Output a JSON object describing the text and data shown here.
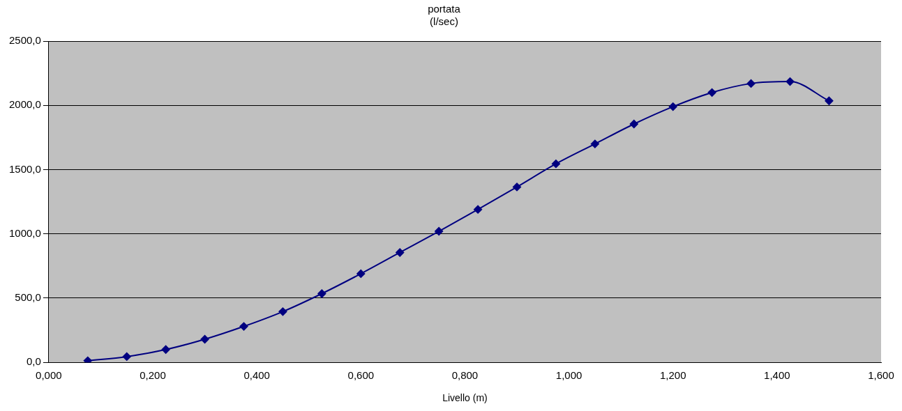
{
  "chart_data": {
    "type": "line",
    "title": "portata\n(l/sec)",
    "xlabel": "Livello (m)",
    "x": [
      0.075,
      0.15,
      0.225,
      0.3,
      0.375,
      0.45,
      0.525,
      0.6,
      0.675,
      0.75,
      0.825,
      0.9,
      0.975,
      1.05,
      1.125,
      1.2,
      1.275,
      1.35,
      1.425,
      1.5
    ],
    "series": [
      {
        "color": "#000080",
        "values": [
          13,
          45,
          100,
          180,
          280,
          395,
          535,
          690,
          855,
          1020,
          1190,
          1365,
          1545,
          1700,
          1855,
          1990,
          2100,
          2170,
          2185,
          2035
        ]
      }
    ],
    "xlim": [
      0,
      1.6
    ],
    "xticks": [
      {
        "value": 0,
        "label": "0,000"
      },
      {
        "value": 0.2,
        "label": "0,200"
      },
      {
        "value": 0.4,
        "label": "0,400"
      },
      {
        "value": 0.6,
        "label": "0,600"
      },
      {
        "value": 0.8,
        "label": "0,800"
      },
      {
        "value": 1,
        "label": "1,000"
      },
      {
        "value": 1.2,
        "label": "1,200"
      },
      {
        "value": 1.4,
        "label": "1,400"
      },
      {
        "value": 1.6,
        "label": "1,600"
      }
    ],
    "ylim": [
      0,
      2500
    ],
    "yticks": [
      {
        "value": 0,
        "label": "0,0"
      },
      {
        "value": 500,
        "label": "500,0"
      },
      {
        "value": 1000,
        "label": "1000,0"
      },
      {
        "value": 1500,
        "label": "1500,0"
      },
      {
        "value": 2000,
        "label": "2000,0"
      },
      {
        "value": 2500,
        "label": "2500,0"
      }
    ],
    "grid": "y",
    "marker": "diamond",
    "line_style": "solid"
  }
}
